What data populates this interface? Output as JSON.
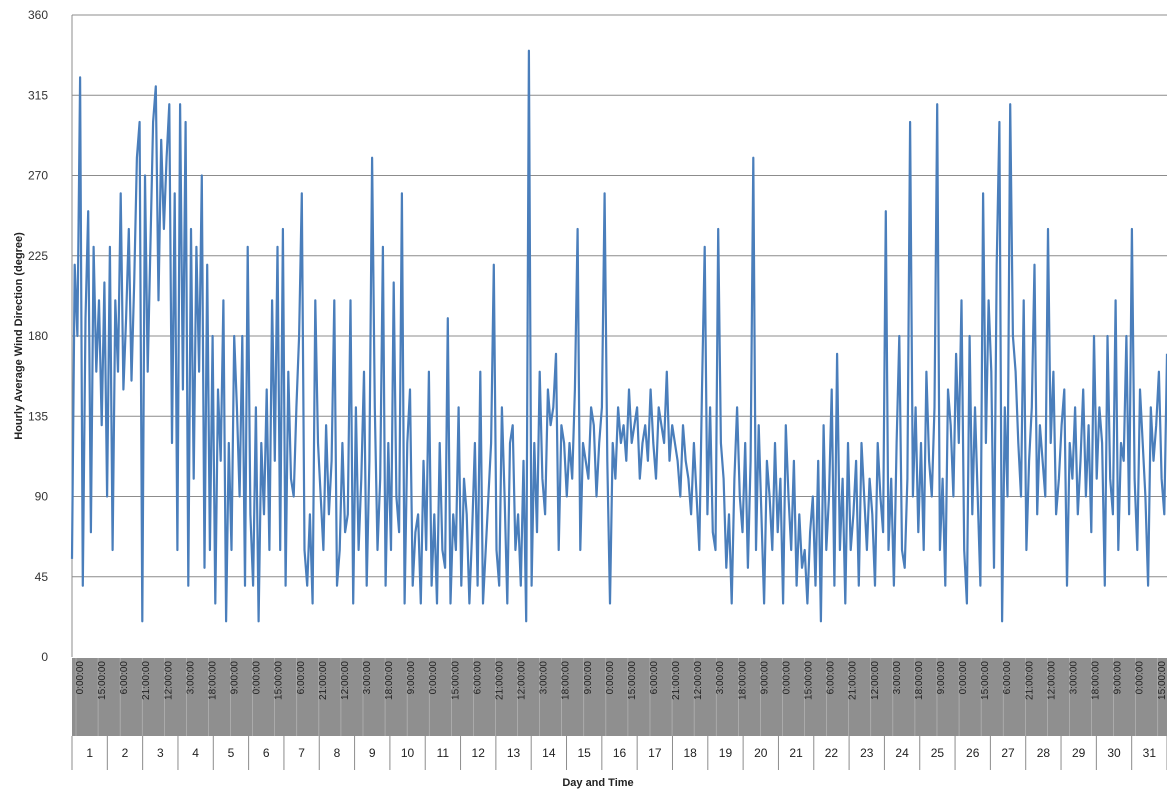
{
  "chart_data": {
    "type": "line",
    "title": "",
    "xlabel": "Day and Time",
    "ylabel": "Hourly Average Wind Direction (degree)",
    "ylim": [
      0,
      360
    ],
    "yticks": [
      "0",
      "45",
      "90",
      "135",
      "180",
      "225",
      "270",
      "315",
      "360"
    ],
    "grid": "horizontal",
    "legend": "none",
    "line_color": "#4A7EBB",
    "time_tick_labels": [
      "0:00:00",
      "15:00:00",
      "6:00:00",
      "21:00:00",
      "12:00:00",
      "3:00:00",
      "18:00:00",
      "9:00:00",
      "0:00:00",
      "15:00:00",
      "6:00:00",
      "21:00:00",
      "12:00:00",
      "3:00:00",
      "18:00:00",
      "9:00:00",
      "0:00:00",
      "15:00:00",
      "6:00:00",
      "21:00:00",
      "12:00:00",
      "3:00:00",
      "18:00:00",
      "9:00:00",
      "0:00:00",
      "15:00:00",
      "6:00:00",
      "21:00:00",
      "12:00:00",
      "3:00:00",
      "18:00:00",
      "9:00:00",
      "0:00:00",
      "15:00:00",
      "6:00:00",
      "21:00:00",
      "12:00:00",
      "3:00:00",
      "18:00:00",
      "9:00:00",
      "0:00:00",
      "15:00:00",
      "6:00:00",
      "21:00:00",
      "12:00:00",
      "3:00:00",
      "18:00:00",
      "9:00:00",
      "0:00:00",
      "15:00:00",
      "6:00:00",
      "21:00:00",
      "12:00:00",
      "3:00:00",
      "18:00:00",
      "9:00:00",
      "0:00:00",
      "15:00:00",
      "6:00:00",
      "21:00:00",
      "12:00:00",
      "3:00:00",
      "18:00:00",
      "9:00:00",
      "0:00:00",
      "15:00:00",
      "6:00:00",
      "21:00:00",
      "12:00:00",
      "3:00:00",
      "18:00:00",
      "9:00:00",
      "0:00:00",
      "15:00:00",
      "6:00:00",
      "21:00:00",
      "12:00:00",
      "3:00:00",
      "18:00:00",
      "9:00:00",
      "0:00:00",
      "15:00:00",
      "6:00:00",
      "21:00:00",
      "12:00:00",
      "3:00:00",
      "18:00:00",
      "9:00:00",
      "0:00:00",
      "15:00:00",
      "6:00:00",
      "21:00:00",
      "12:00:00",
      "3:00:00",
      "18:00:00",
      "9:00:00",
      "0:00:00",
      "15:00:00"
    ],
    "days": [
      "1",
      "2",
      "3",
      "4",
      "5",
      "6",
      "7",
      "8",
      "9",
      "10",
      "11",
      "12",
      "13",
      "14",
      "15",
      "16",
      "17",
      "18",
      "19",
      "20",
      "21",
      "22",
      "23",
      "24",
      "25",
      "26",
      "27",
      "28",
      "29",
      "30",
      "31"
    ],
    "series": [
      {
        "x_unit": "hours since start of day 1 (sampled every 3 hours; approximate digitization of the hourly trace)",
        "values": [
          55,
          220,
          180,
          325,
          40,
          190,
          250,
          70,
          230,
          160,
          200,
          130,
          210,
          90,
          230,
          60,
          200,
          160,
          260,
          150,
          190,
          240,
          155,
          210,
          280,
          300,
          20,
          270,
          160,
          230,
          300,
          320,
          200,
          290,
          240,
          280,
          310,
          120,
          260,
          60,
          310,
          150,
          300,
          40,
          240,
          100,
          230,
          160,
          270,
          50,
          220,
          60,
          180,
          30,
          150,
          110,
          200,
          20,
          120,
          60,
          180,
          140,
          90,
          180,
          40,
          230,
          80,
          40,
          140,
          20,
          120,
          80,
          150,
          60,
          200,
          110,
          230,
          60,
          240,
          40,
          160,
          100,
          90,
          140,
          180,
          260,
          60,
          40,
          80,
          30,
          200,
          120,
          90,
          60,
          130,
          80,
          110,
          200,
          40,
          60,
          120,
          70,
          80,
          200,
          30,
          140,
          60,
          100,
          160,
          40,
          110,
          280,
          140,
          60,
          100,
          230,
          40,
          120,
          60,
          210,
          90,
          70,
          260,
          30,
          120,
          150,
          40,
          70,
          80,
          30,
          110,
          60,
          160,
          40,
          80,
          30,
          120,
          60,
          50,
          190,
          30,
          80,
          60,
          140,
          40,
          100,
          80,
          30,
          70,
          120,
          40,
          160,
          30,
          60,
          90,
          120,
          220,
          60,
          40,
          140,
          90,
          30,
          120,
          130,
          60,
          80,
          40,
          110,
          20,
          340,
          40,
          120,
          70,
          160,
          100,
          80,
          150,
          130,
          140,
          170,
          60,
          130,
          120,
          90,
          120,
          100,
          150,
          240,
          60,
          120,
          110,
          100,
          140,
          130,
          90,
          120,
          140,
          260,
          110,
          30,
          120,
          100,
          140,
          120,
          130,
          110,
          150,
          120,
          130,
          140,
          100,
          120,
          130,
          110,
          150,
          120,
          100,
          140,
          130,
          120,
          160,
          110,
          130,
          120,
          110,
          90,
          130,
          110,
          100,
          80,
          120,
          90,
          60,
          150,
          230,
          80,
          140,
          70,
          60,
          240,
          120,
          100,
          50,
          80,
          30,
          100,
          140,
          90,
          70,
          120,
          50,
          110,
          280,
          60,
          130,
          80,
          30,
          110,
          90,
          60,
          120,
          70,
          100,
          30,
          130,
          90,
          60,
          110,
          40,
          80,
          50,
          60,
          30,
          70,
          90,
          40,
          110,
          20,
          130,
          60,
          90,
          150,
          40,
          170,
          60,
          100,
          30,
          120,
          60,
          80,
          110,
          40,
          120,
          90,
          60,
          100,
          80,
          40,
          120,
          90,
          70,
          250,
          60,
          100,
          40,
          120,
          180,
          60,
          50,
          100,
          300,
          90,
          140,
          70,
          120,
          60,
          160,
          110,
          90,
          140,
          310,
          60,
          100,
          40,
          150,
          130,
          90,
          170,
          120,
          200,
          60,
          30,
          180,
          80,
          140,
          90,
          40,
          260,
          120,
          200,
          160,
          50,
          220,
          300,
          20,
          140,
          90,
          310,
          180,
          160,
          120,
          90,
          200,
          60,
          110,
          140,
          220,
          80,
          130,
          110,
          90,
          240,
          120,
          160,
          80,
          100,
          130,
          150,
          40,
          120,
          100,
          140,
          80,
          110,
          150,
          90,
          130,
          70,
          180,
          100,
          140,
          120,
          40,
          180,
          100,
          80,
          200,
          60,
          120,
          110,
          180,
          80,
          240,
          100,
          60,
          150,
          120,
          90,
          40,
          140,
          110,
          130,
          160,
          100,
          80,
          170
        ]
      }
    ]
  }
}
